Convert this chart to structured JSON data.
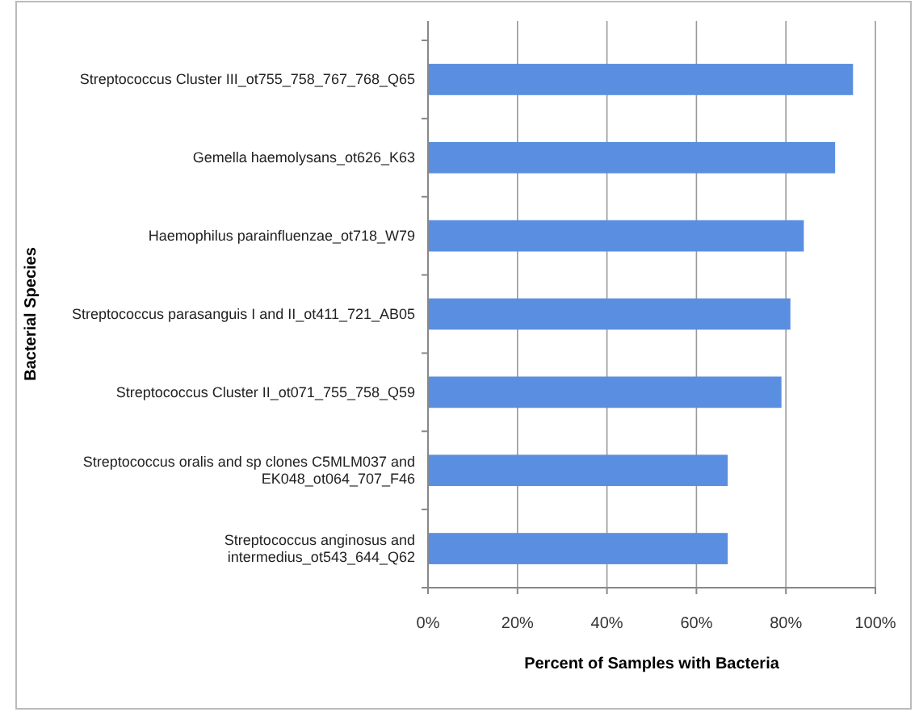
{
  "chart_data": {
    "type": "bar",
    "orientation": "horizontal",
    "xlabel": "Percent of Samples with Bacteria",
    "ylabel": "Bacterial Species",
    "categories": [
      "Streptococcus Cluster III_ot755_758_767_768_Q65",
      "Gemella haemolysans_ot626_K63",
      "Haemophilus parainfluenzae_ot718_W79",
      "Streptococcus parasanguis I and II_ot411_721_AB05",
      "Streptococcus Cluster II_ot071_755_758_Q59",
      "Streptococcus oralis and sp clones C5MLM037 and EK048_ot064_707_F46",
      "Streptococcus anginosus and intermedius_ot543_644_Q62"
    ],
    "values": [
      95,
      91,
      84,
      81,
      79,
      67,
      67
    ],
    "color": "#5a8ee0",
    "xlim": [
      0,
      100
    ],
    "xticks": [
      {
        "value": 0,
        "label": "0%"
      },
      {
        "value": 20,
        "label": "20%"
      },
      {
        "value": 40,
        "label": "40%"
      },
      {
        "value": 60,
        "label": "60%"
      },
      {
        "value": 80,
        "label": "80%"
      },
      {
        "value": 100,
        "label": "100%"
      }
    ],
    "grid": "x"
  }
}
